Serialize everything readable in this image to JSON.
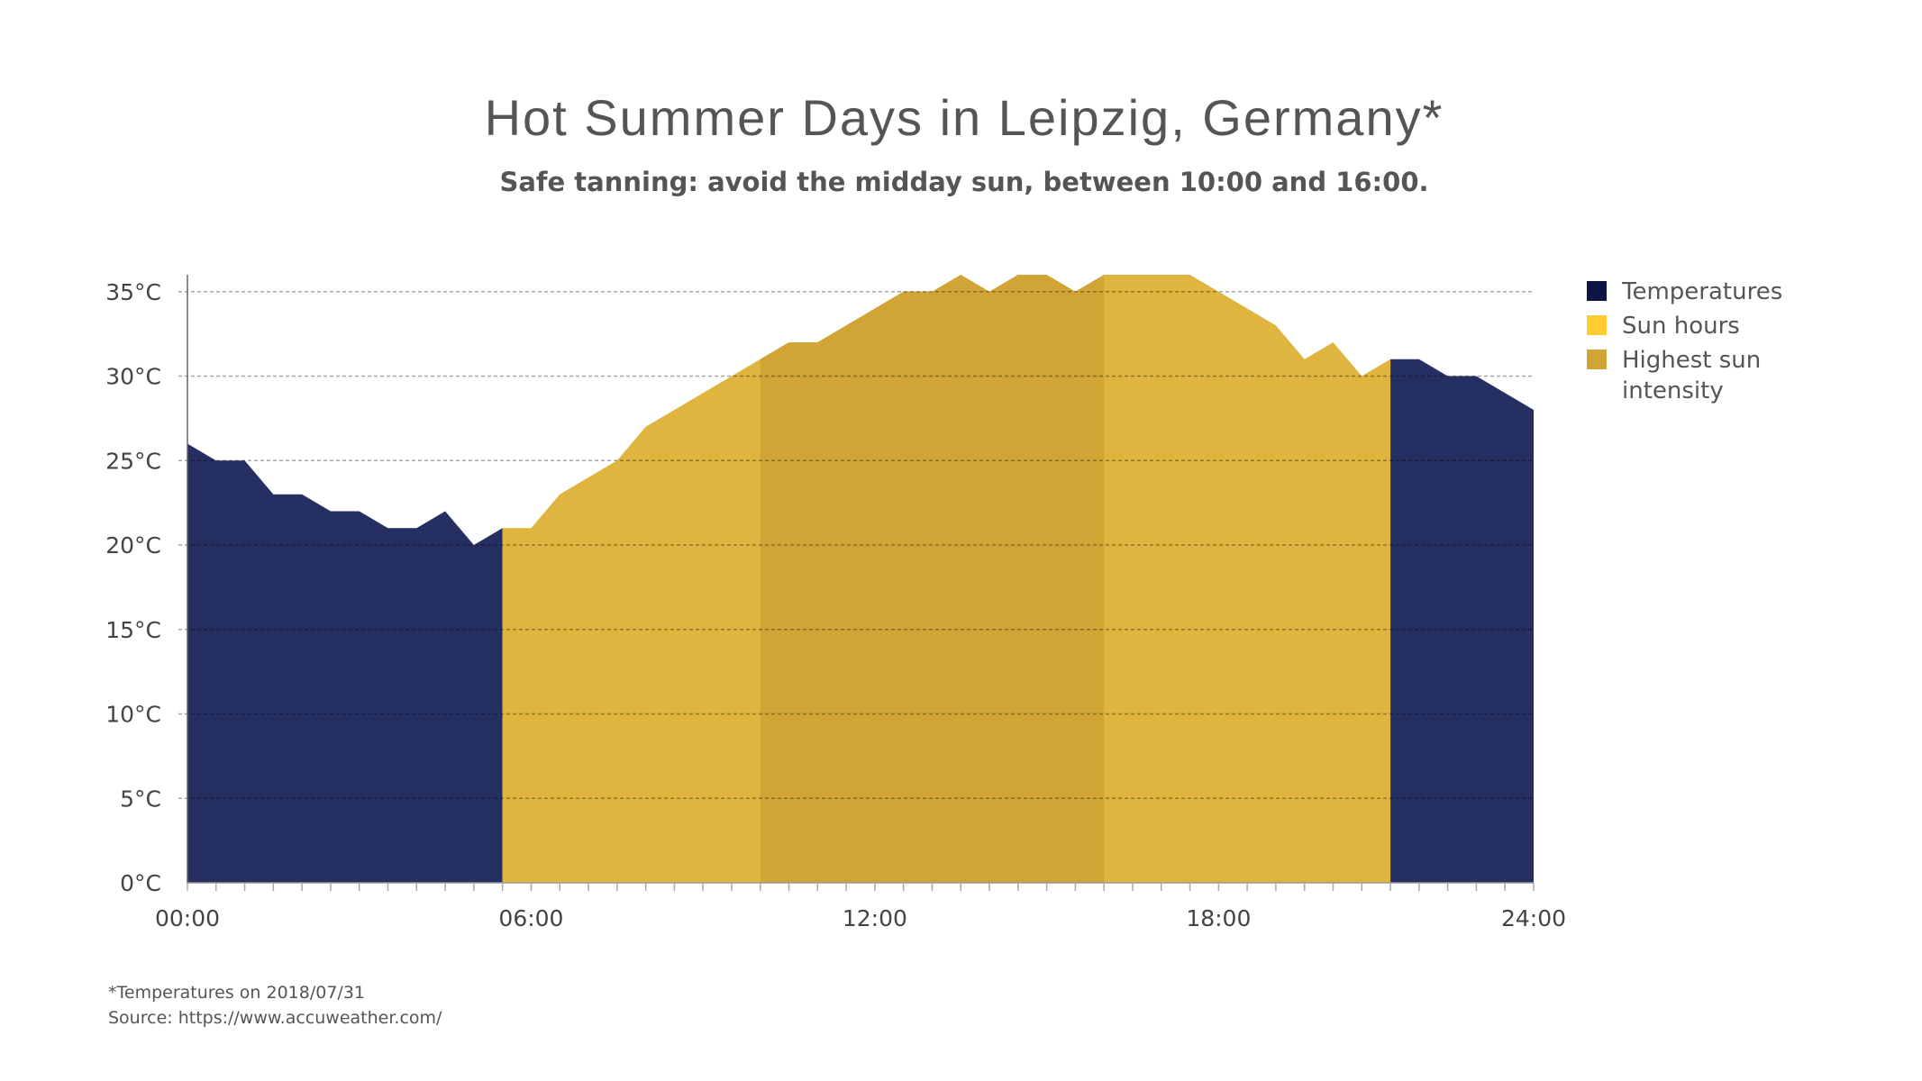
{
  "chart_data": {
    "type": "area",
    "title": "Hot Summer Days in Leipzig, Germany*",
    "subtitle": "Safe tanning: avoid the midday sun, between 10:00 and 16:00.",
    "xlabel": "",
    "ylabel": "",
    "x_tick_labels": [
      "00:00",
      "06:00",
      "12:00",
      "18:00",
      "24:00"
    ],
    "y_ticks": [
      0,
      5,
      10,
      15,
      20,
      25,
      30,
      35
    ],
    "y_tick_labels": [
      "0°C",
      "5°C",
      "10°C",
      "15°C",
      "20°C",
      "25°C",
      "30°C",
      "35°C"
    ],
    "ylim": [
      0,
      36
    ],
    "grid": true,
    "legend_position": "right",
    "x": [
      "00:00",
      "00:30",
      "01:00",
      "01:30",
      "02:00",
      "02:30",
      "03:00",
      "03:30",
      "04:00",
      "04:30",
      "05:00",
      "05:30",
      "06:00",
      "06:30",
      "07:00",
      "07:30",
      "08:00",
      "08:30",
      "09:00",
      "09:30",
      "10:00",
      "10:30",
      "11:00",
      "11:30",
      "12:00",
      "12:30",
      "13:00",
      "13:30",
      "14:00",
      "14:30",
      "15:00",
      "15:30",
      "16:00",
      "16:30",
      "17:00",
      "17:30",
      "18:00",
      "18:30",
      "19:00",
      "19:30",
      "20:00",
      "20:30",
      "21:00",
      "21:30",
      "22:00",
      "22:30",
      "23:00",
      "23:30"
    ],
    "values": [
      26,
      25,
      25,
      23,
      23,
      22,
      22,
      21,
      21,
      22,
      20,
      21,
      21,
      23,
      24,
      25,
      27,
      28,
      29,
      30,
      31,
      32,
      32,
      33,
      34,
      35,
      35,
      36,
      35,
      36,
      36,
      35,
      36,
      36,
      36,
      36,
      35,
      34,
      33,
      31,
      32,
      30,
      31,
      31,
      30,
      30,
      29,
      28
    ],
    "series": [
      {
        "name": "Temperatures",
        "color": "#0d1446",
        "fill": "#262f62",
        "ranges": [
          [
            "00:00",
            "05:30"
          ],
          [
            "21:00",
            "23:30"
          ]
        ]
      },
      {
        "name": "Sun hours",
        "color": "#ffcb33",
        "fill": "#dfb43f",
        "ranges": [
          [
            "05:30",
            "21:00"
          ]
        ]
      },
      {
        "name": "Highest sun intensity",
        "color": "#d0a535",
        "fill": "#d0a535",
        "ranges": [
          [
            "10:00",
            "16:00"
          ]
        ]
      }
    ],
    "legend": [
      "Temperatures",
      "Sun hours",
      "Highest sun",
      "intensity"
    ]
  },
  "footer": {
    "note": "*Temperatures on 2018/07/31",
    "source": "Source: https://www.accuweather.com/"
  }
}
